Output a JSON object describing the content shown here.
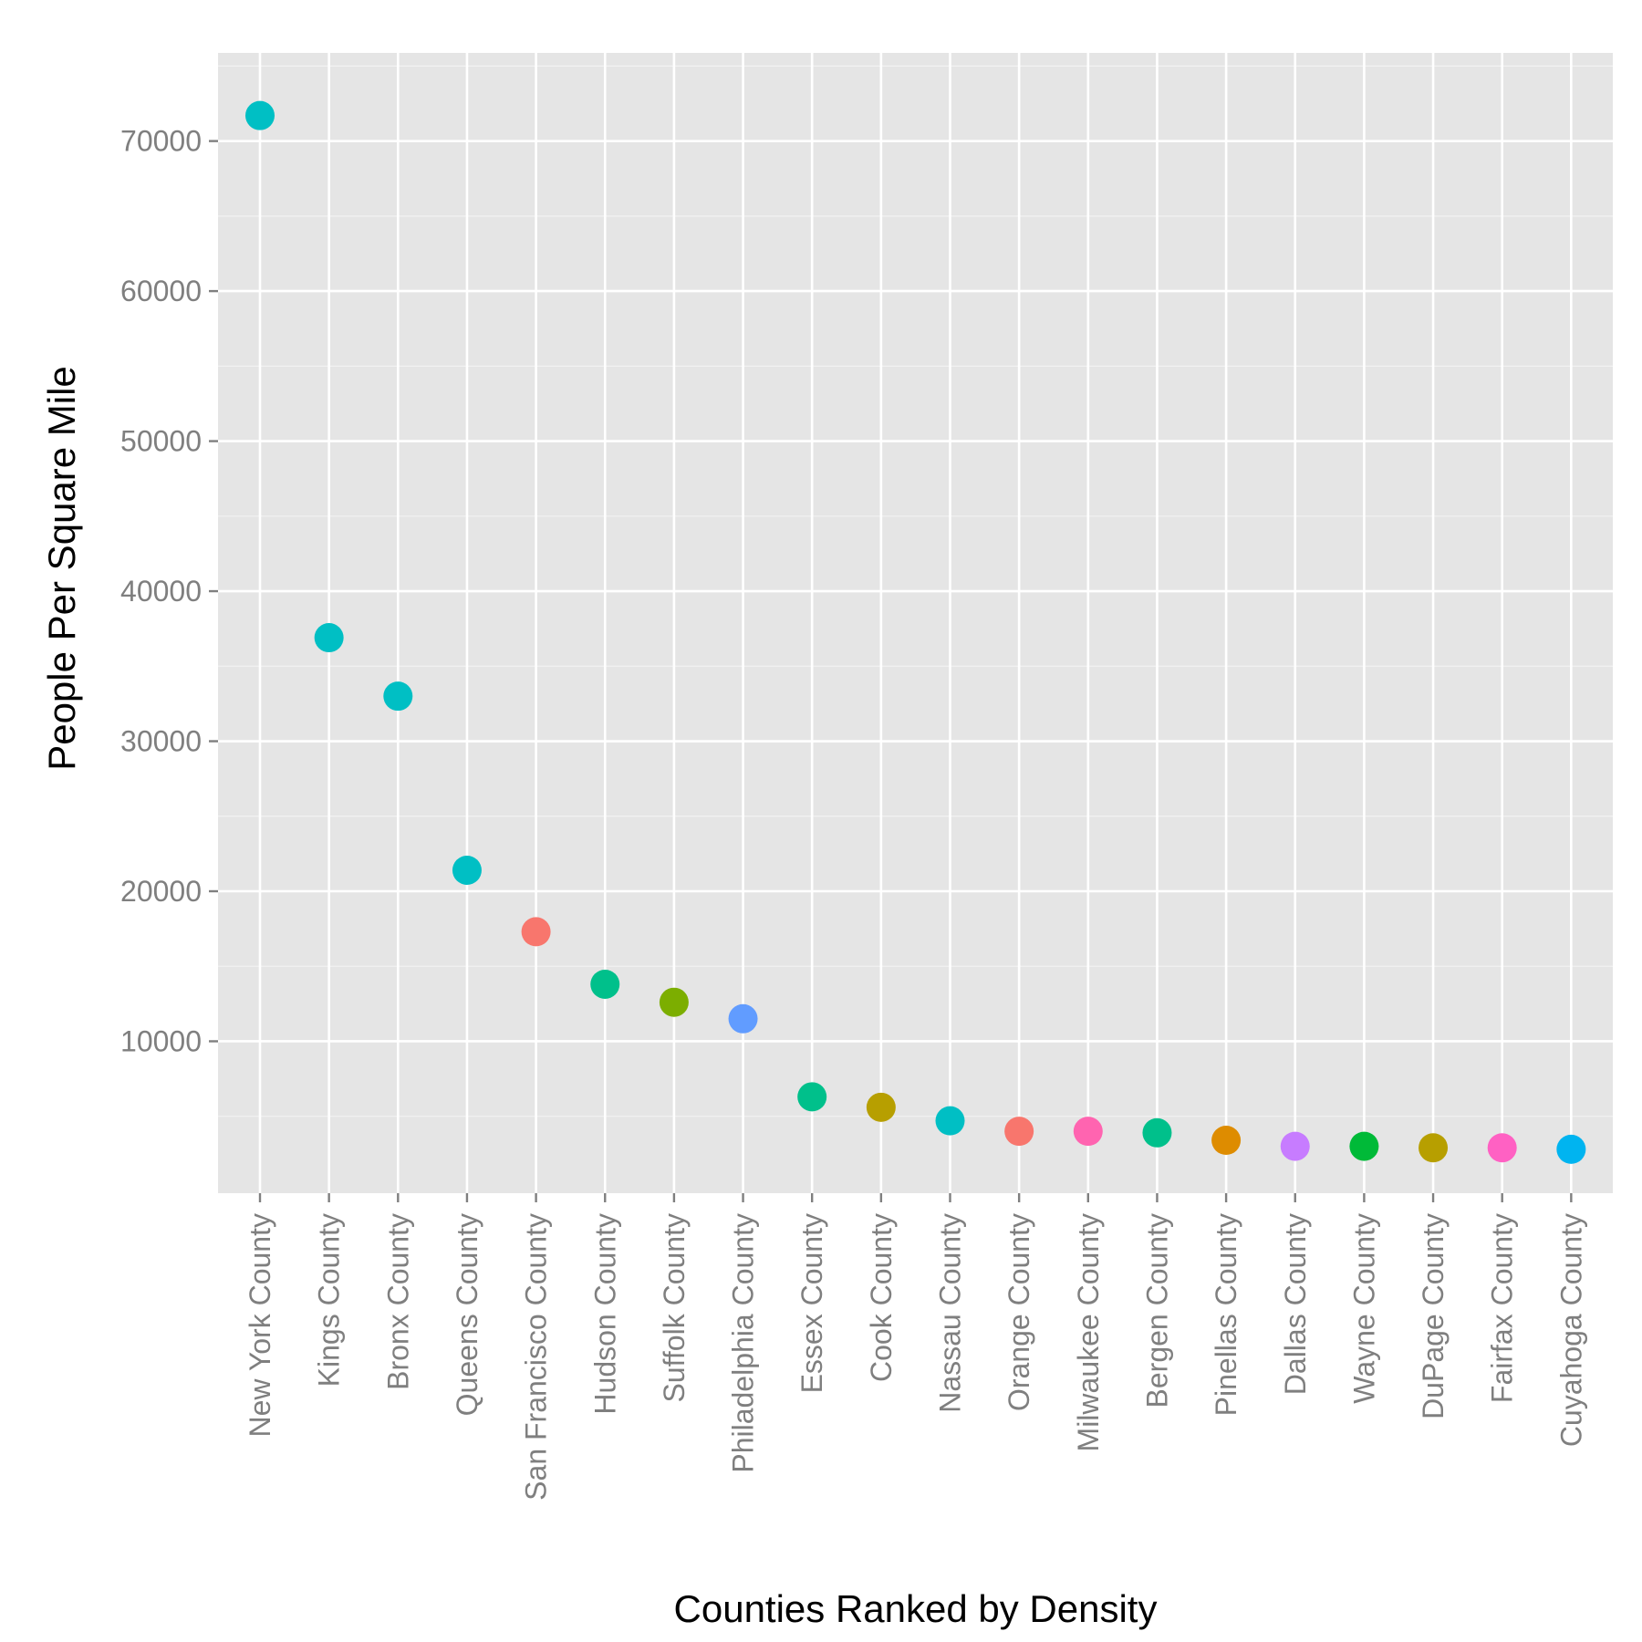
{
  "chart_data": {
    "type": "scatter",
    "title": "",
    "xlabel": "Counties Ranked by Density",
    "ylabel": "People Per Square Mile",
    "ylim": [
      -125,
      75875
    ],
    "yticks": [
      10000,
      20000,
      30000,
      40000,
      50000,
      60000,
      70000
    ],
    "grid": true,
    "legend": "none",
    "categories": [
      "New York County",
      "Kings County",
      "Bronx County",
      "Queens County",
      "San Francisco County",
      "Hudson County",
      "Suffolk County",
      "Philadelphia County",
      "Essex County",
      "Cook County",
      "Nassau County",
      "Orange County",
      "Milwaukee County",
      "Bergen County",
      "Pinellas County",
      "Dallas County",
      "Wayne County",
      "DuPage County",
      "Fairfax County",
      "Cuyahoga County"
    ],
    "values": [
      71700,
      36900,
      33000,
      21400,
      17300,
      13800,
      12600,
      11500,
      6300,
      5600,
      4700,
      4000,
      4000,
      3900,
      3400,
      3000,
      3000,
      2900,
      2900,
      2800
    ],
    "colors": [
      "#00BFC4",
      "#00BFC4",
      "#00BFC4",
      "#00BFC4",
      "#F8766D",
      "#00C08B",
      "#7CAE00",
      "#619CFF",
      "#00C08B",
      "#B79F00",
      "#00BFC4",
      "#F8766D",
      "#FF64B0",
      "#00C08B",
      "#DE8C00",
      "#C77CFF",
      "#00BA38",
      "#B79F00",
      "#FF61C3",
      "#00B4F0"
    ]
  }
}
